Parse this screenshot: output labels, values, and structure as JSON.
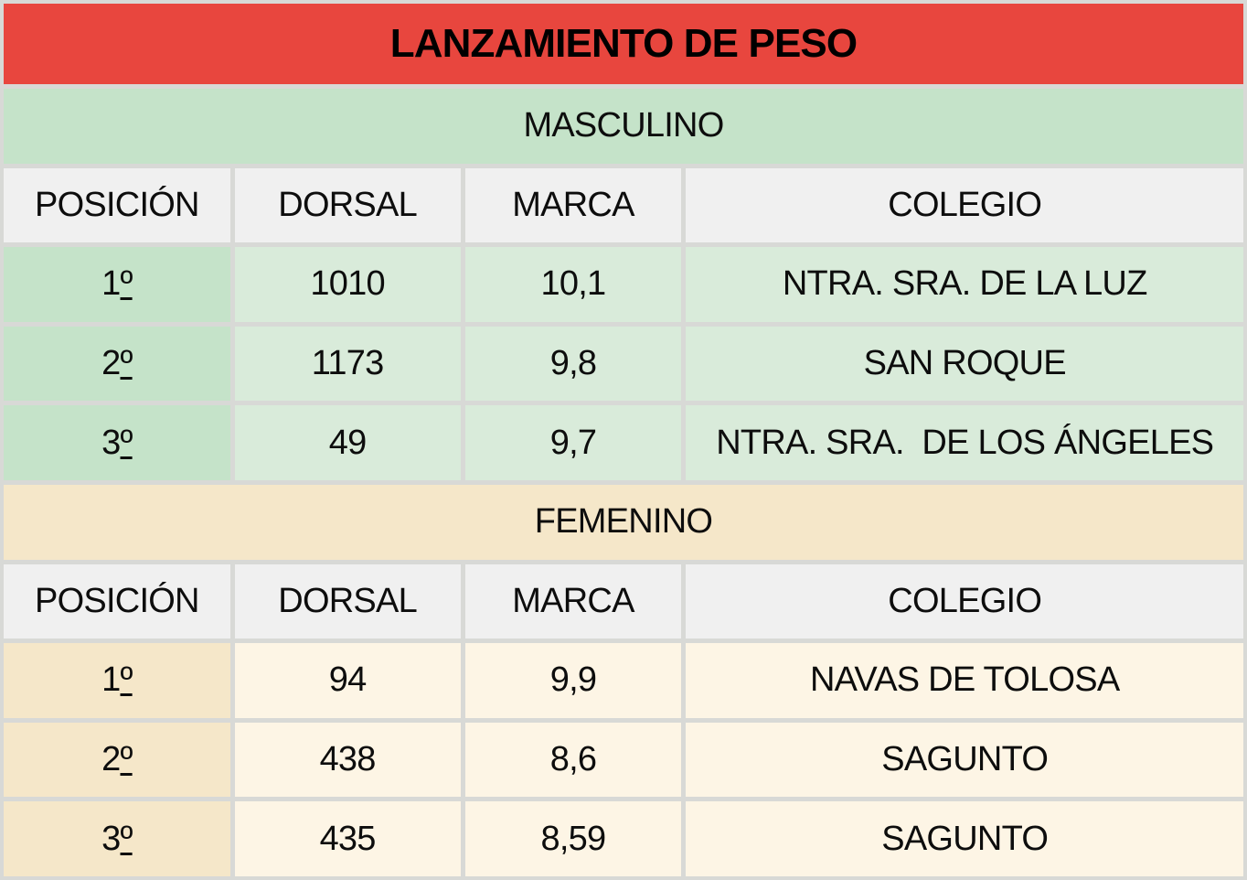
{
  "title": "LANZAMIENTO DE PESO",
  "colors": {
    "title_bg": "#e8463e",
    "masculino_bg": "#c5e3c9",
    "masculino_row_bg": "#d9ebda",
    "femenino_bg": "#f5e7c9",
    "femenino_row_bg": "#fdf5e5",
    "header_bg": "#f0f0f0",
    "grid": "#d8d9d6",
    "text": "#0d0d0d"
  },
  "sections": [
    {
      "label": "MASCULINO",
      "headers": [
        "POSICIÓN",
        "DORSAL",
        "MARCA",
        "COLEGIO"
      ],
      "rows": [
        {
          "posicion": "1º",
          "dorsal": "1010",
          "marca": "10,1",
          "colegio": "NTRA. SRA. DE LA LUZ"
        },
        {
          "posicion": "2º",
          "dorsal": "1173",
          "marca": "9,8",
          "colegio": "SAN ROQUE"
        },
        {
          "posicion": "3º",
          "dorsal": "49",
          "marca": "9,7",
          "colegio": "NTRA. SRA.  DE LOS ÁNGELES"
        }
      ]
    },
    {
      "label": "FEMENINO",
      "headers": [
        "POSICIÓN",
        "DORSAL",
        "MARCA",
        "COLEGIO"
      ],
      "rows": [
        {
          "posicion": "1º",
          "dorsal": "94",
          "marca": "9,9",
          "colegio": "NAVAS DE TOLOSA"
        },
        {
          "posicion": "2º",
          "dorsal": "438",
          "marca": "8,6",
          "colegio": "SAGUNTO"
        },
        {
          "posicion": "3º",
          "dorsal": "435",
          "marca": "8,59",
          "colegio": "SAGUNTO"
        }
      ]
    }
  ]
}
